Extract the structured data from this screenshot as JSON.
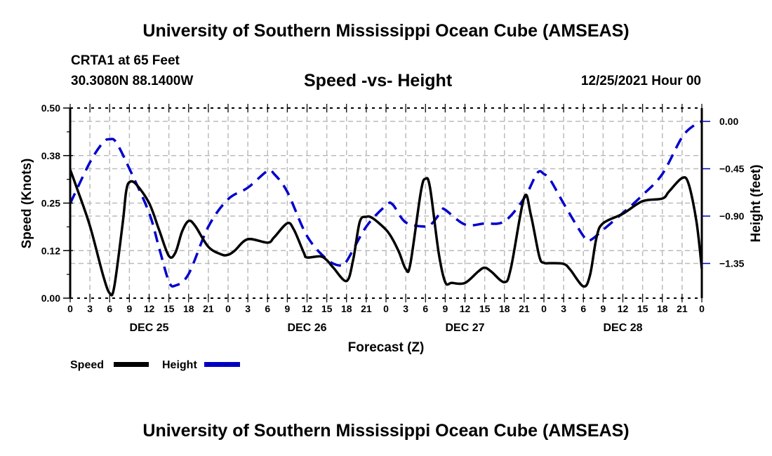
{
  "header": {
    "title": "University of Southern Mississippi Ocean Cube (AMSEAS)",
    "station": "CRTA1 at 65 Feet",
    "coordinates": "30.3080N  88.1400W",
    "subtitle": "Speed -vs- Height",
    "datetime": "12/25/2021 Hour 00"
  },
  "footer": {
    "title": "University of Southern Mississippi Ocean Cube (AMSEAS)"
  },
  "colors": {
    "speed": "#000000",
    "height": "#0000cc",
    "grid": "#bbbbbb"
  },
  "chart_data": {
    "type": "line",
    "title": "Speed -vs- Height",
    "xlabel": "Forecast (Z)",
    "ylabel": "Speed (Knots)",
    "y2label": "Height (feet)",
    "xlim": [
      0,
      96
    ],
    "ylim": [
      0,
      0.5
    ],
    "y2lim": [
      -1.68,
      0.127
    ],
    "grid": true,
    "legend_placement": "bottom-left",
    "x_tick_labels": [
      "0",
      "3",
      "6",
      "9",
      "12",
      "15",
      "18",
      "21",
      "0",
      "3",
      "6",
      "9",
      "12",
      "15",
      "18",
      "21",
      "0",
      "3",
      "6",
      "9",
      "12",
      "15",
      "18",
      "21",
      "0",
      "3",
      "6",
      "9",
      "12",
      "15",
      "18",
      "21",
      "0"
    ],
    "day_labels": [
      {
        "label": "DEC 25",
        "hour": 12
      },
      {
        "label": "DEC 26",
        "hour": 36
      },
      {
        "label": "DEC 27",
        "hour": 60
      },
      {
        "label": "DEC 28",
        "hour": 84
      }
    ],
    "y_ticks": [
      {
        "value": 0.0,
        "label": "0.00"
      },
      {
        "value": 0.125,
        "label": "0.12"
      },
      {
        "value": 0.25,
        "label": "0.25"
      },
      {
        "value": 0.375,
        "label": "0.38"
      },
      {
        "value": 0.5,
        "label": "0.50"
      }
    ],
    "y2_ticks": [
      {
        "value": 0.0,
        "label": "0.00"
      },
      {
        "value": -0.45,
        "label": "−0.45"
      },
      {
        "value": -0.9,
        "label": "−0.90"
      },
      {
        "value": -1.35,
        "label": "−1.35"
      }
    ],
    "series": [
      {
        "name": "Speed",
        "axis": "left",
        "style": "solid",
        "x": [
          0,
          1,
          3,
          5,
          6,
          6.7,
          8,
          8.5,
          9,
          10,
          12,
          13.5,
          15,
          16,
          17,
          18,
          19,
          21,
          23,
          24,
          25,
          27,
          30,
          31,
          33,
          34,
          35.5,
          36,
          38,
          39,
          40,
          42,
          43,
          44,
          45,
          46,
          48,
          49,
          50,
          51,
          51.7,
          53.3,
          54,
          54.7,
          56,
          57,
          58,
          60,
          62,
          63,
          64,
          66,
          67,
          69,
          70,
          71.3,
          72,
          73,
          75,
          76,
          78,
          79,
          80,
          81,
          84,
          87,
          90,
          91,
          93,
          94,
          95.2,
          96
        ],
        "values": [
          0.338,
          0.29,
          0.19,
          0.06,
          0.013,
          0.03,
          0.2,
          0.28,
          0.305,
          0.3,
          0.25,
          0.18,
          0.111,
          0.12,
          0.175,
          0.203,
          0.19,
          0.135,
          0.115,
          0.114,
          0.125,
          0.155,
          0.146,
          0.16,
          0.197,
          0.18,
          0.12,
          0.107,
          0.11,
          0.1,
          0.08,
          0.045,
          0.1,
          0.2,
          0.214,
          0.21,
          0.18,
          0.155,
          0.12,
          0.077,
          0.09,
          0.28,
          0.314,
          0.29,
          0.12,
          0.042,
          0.04,
          0.04,
          0.07,
          0.08,
          0.07,
          0.042,
          0.08,
          0.265,
          0.22,
          0.11,
          0.093,
          0.092,
          0.09,
          0.075,
          0.031,
          0.06,
          0.16,
          0.197,
          0.222,
          0.255,
          0.262,
          0.28,
          0.316,
          0.3,
          0.2,
          0.077
        ]
      },
      {
        "name": "Height",
        "axis": "right",
        "style": "dashed",
        "x": [
          0,
          3,
          5,
          6,
          7,
          9,
          12,
          13.5,
          15,
          16,
          18,
          21,
          24,
          27,
          30,
          31,
          33,
          36,
          39,
          41,
          42,
          45,
          48,
          49,
          51,
          54,
          55,
          56.5,
          57,
          60,
          63,
          66,
          69,
          71,
          72,
          73,
          75,
          78,
          79,
          81,
          84,
          87,
          90,
          93,
          95,
          96
        ],
        "values": [
          -0.78,
          -0.39,
          -0.2,
          -0.17,
          -0.2,
          -0.45,
          -0.87,
          -1.2,
          -1.52,
          -1.56,
          -1.45,
          -1.0,
          -0.74,
          -0.63,
          -0.47,
          -0.5,
          -0.67,
          -1.09,
          -1.31,
          -1.37,
          -1.33,
          -1.0,
          -0.8,
          -0.79,
          -0.96,
          -1.0,
          -0.97,
          -0.85,
          -0.84,
          -0.98,
          -0.97,
          -0.95,
          -0.73,
          -0.49,
          -0.5,
          -0.56,
          -0.78,
          -1.09,
          -1.13,
          -1.03,
          -0.87,
          -0.7,
          -0.5,
          -0.15,
          -0.03,
          0.0
        ]
      }
    ]
  }
}
